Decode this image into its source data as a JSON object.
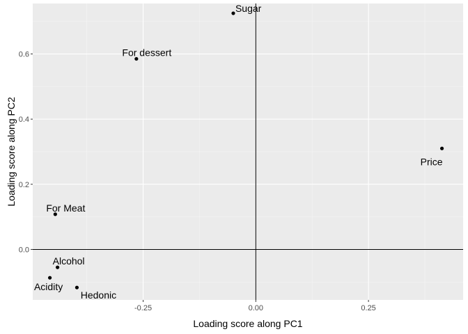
{
  "chart_data": {
    "type": "scatter",
    "xlabel": "Loading score along PC1",
    "ylabel": "Loading score along PC2",
    "xlim": [
      -0.495,
      0.46
    ],
    "ylim": [
      -0.155,
      0.755
    ],
    "x_ticks": [
      -0.25,
      0.0,
      0.25
    ],
    "x_tick_labels": [
      "-0.25",
      "0.00",
      "0.25"
    ],
    "y_ticks": [
      0.0,
      0.2,
      0.4,
      0.6
    ],
    "y_tick_labels": [
      "0.0",
      "0.2",
      "0.4",
      "0.6"
    ],
    "reference_lines": {
      "x": 0,
      "y": 0
    },
    "grid": true,
    "points": [
      {
        "label": "Sugar",
        "x": -0.05,
        "y": 0.725
      },
      {
        "label": "For dessert",
        "x": -0.265,
        "y": 0.585
      },
      {
        "label": "Price",
        "x": 0.413,
        "y": 0.31
      },
      {
        "label": "For Meat",
        "x": -0.445,
        "y": 0.108
      },
      {
        "label": "Alcohol",
        "x": -0.44,
        "y": -0.055
      },
      {
        "label": "Acidity",
        "x": -0.457,
        "y": -0.087
      },
      {
        "label": "Hedonic",
        "x": -0.397,
        "y": -0.117
      }
    ]
  }
}
